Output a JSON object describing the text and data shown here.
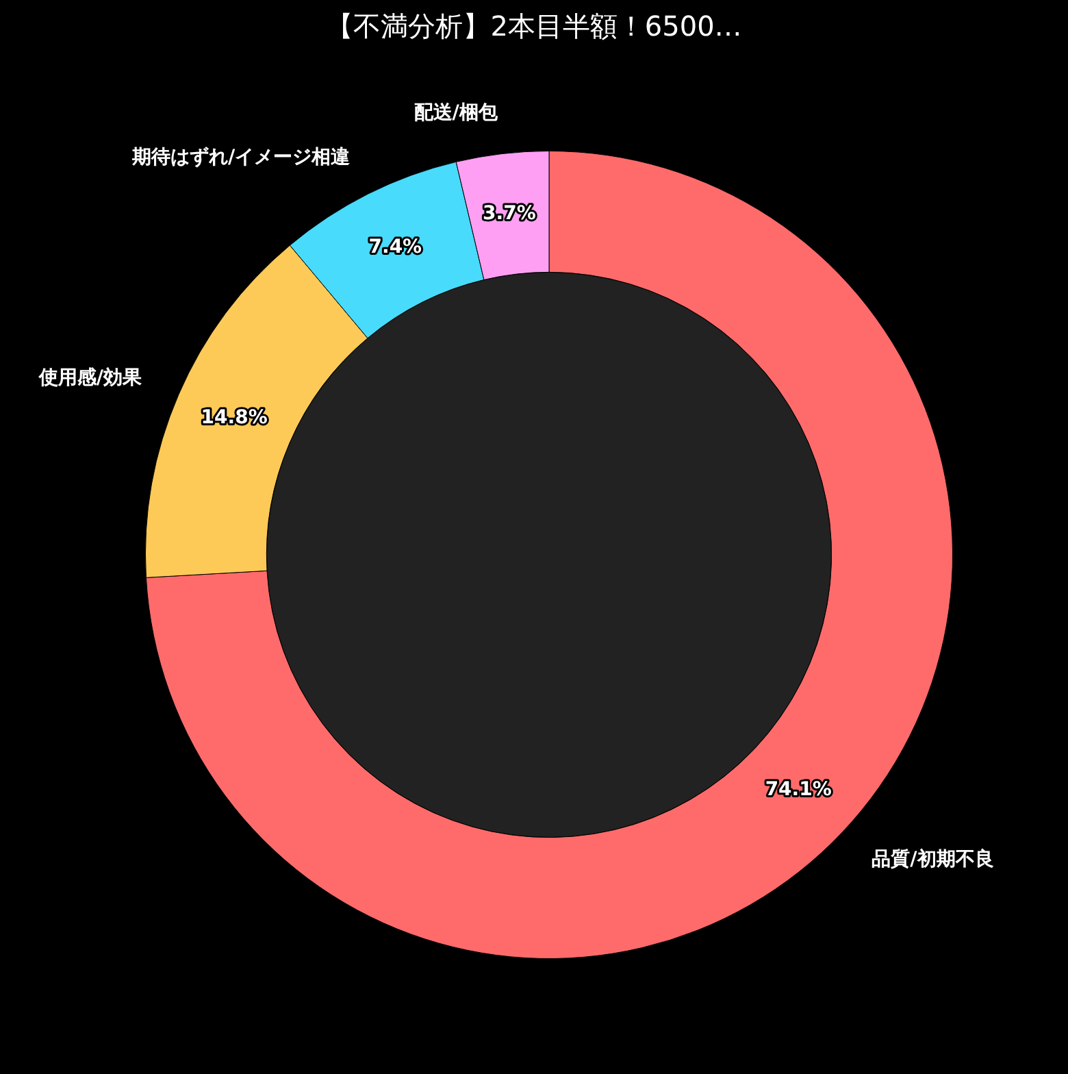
{
  "chart_data": {
    "type": "donut",
    "title": "【不満分析】2本目半額！6500…",
    "categories": [
      "品質/初期不良",
      "使用感/効果",
      "期待はずれ/イメージ相違",
      "配送/梱包"
    ],
    "values": [
      74.1,
      14.8,
      7.4,
      3.7
    ],
    "colors": [
      "#ff6b6b",
      "#feca57",
      "#48dbfb",
      "#ff9ff3"
    ],
    "value_labels": [
      "74.1%",
      "14.8%",
      "7.4%",
      "3.7%"
    ],
    "legend": false
  }
}
